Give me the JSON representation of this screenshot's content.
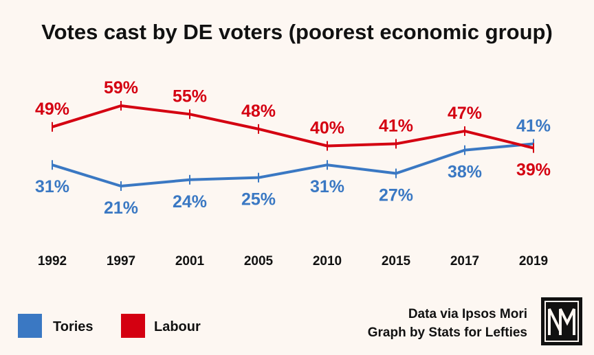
{
  "chart_data": {
    "type": "line",
    "title": "Votes cast by DE voters (poorest economic group)",
    "categories": [
      "1992",
      "1997",
      "2001",
      "2005",
      "2010",
      "2015",
      "2017",
      "2019"
    ],
    "series": [
      {
        "name": "Tories",
        "color": "#3a78c3",
        "values": [
          31,
          21,
          24,
          25,
          31,
          27,
          38,
          41
        ],
        "labels": [
          "31%",
          "21%",
          "24%",
          "25%",
          "31%",
          "27%",
          "38%",
          "41%"
        ]
      },
      {
        "name": "Labour",
        "color": "#d40011",
        "values": [
          49,
          59,
          55,
          48,
          40,
          41,
          47,
          39
        ],
        "labels": [
          "49%",
          "59%",
          "55%",
          "48%",
          "40%",
          "41%",
          "47%",
          "39%"
        ]
      }
    ],
    "ylim": [
      10,
      70
    ],
    "grid": false,
    "legend_position": "bottom-left"
  },
  "credits": {
    "line1": "Data via Ipsos Mori",
    "line2": "Graph by Stats for Lefties"
  },
  "logo": {
    "text": "NM"
  },
  "colors": {
    "background": "#fdf7f2",
    "tories": "#3a78c3",
    "labour": "#d40011"
  }
}
